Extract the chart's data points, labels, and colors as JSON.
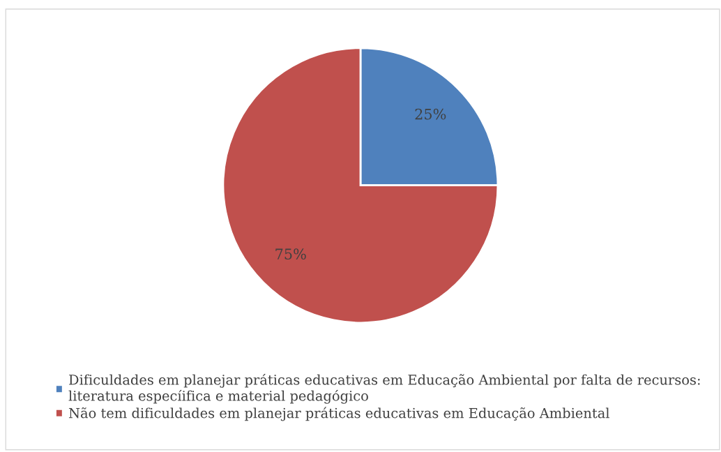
{
  "chart_data": {
    "type": "pie",
    "categories": [
      "Dificuldades em planejar práticas educativas em Educação Ambiental por falta de recursos:\nliteratura especíifica e material pedagógico",
      "Não tem dificuldades em planejar práticas educativas em Educação Ambiental"
    ],
    "values": [
      25,
      75
    ],
    "colors": [
      "#4f81bd",
      "#c0504d"
    ],
    "value_labels": [
      "25%",
      "75%"
    ],
    "legend": "bottom"
  }
}
